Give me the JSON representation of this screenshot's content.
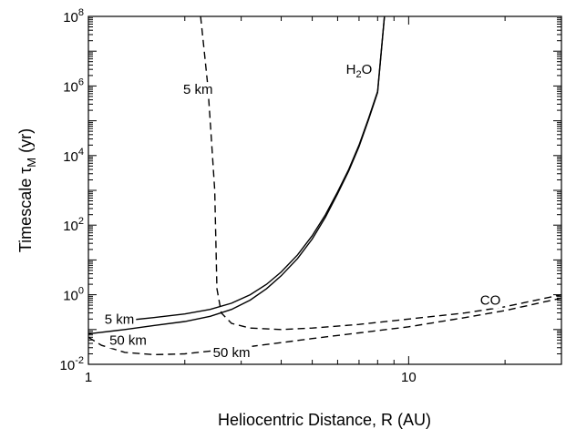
{
  "chart_data": {
    "type": "line",
    "title": "",
    "xlabel": "Heliocentric Distance, R (AU)",
    "ylabel_main": "Timescale τ",
    "ylabel_sub": "M",
    "ylabel_tail": " (yr)",
    "xscale": "log",
    "yscale": "log",
    "xlim": [
      1,
      30
    ],
    "ylim": [
      0.01,
      100000000
    ],
    "x_tick_labels": [
      {
        "value": 1,
        "label": "1"
      },
      {
        "value": 10,
        "label": "10"
      }
    ],
    "y_tick_labels": [
      {
        "value": 0.01,
        "base": "10",
        "exp": "-2"
      },
      {
        "value": 1,
        "base": "10",
        "exp": "0"
      },
      {
        "value": 100,
        "base": "10",
        "exp": "2"
      },
      {
        "value": 10000,
        "base": "10",
        "exp": "4"
      },
      {
        "value": 1000000,
        "base": "10",
        "exp": "6"
      },
      {
        "value": 100000000,
        "base": "10",
        "exp": "8"
      }
    ],
    "series": [
      {
        "id": "h2o-5km",
        "style": "solid",
        "x": [
          1.3,
          1.6,
          2.0,
          2.4,
          2.8,
          3.2,
          3.6,
          4.0,
          4.5,
          5.0,
          5.5,
          6.0,
          6.5,
          7.0,
          7.5,
          8.0,
          8.4
        ],
        "y": [
          0.18,
          0.22,
          0.28,
          0.38,
          0.57,
          1.0,
          2.0,
          4.5,
          14,
          50,
          200,
          900,
          4000,
          20000,
          120000,
          700000,
          100000000
        ]
      },
      {
        "id": "h2o-50km",
        "style": "solid",
        "x": [
          1.0,
          1.3,
          1.6,
          2.0,
          2.4,
          2.8,
          3.2,
          3.6,
          4.0,
          4.5,
          5.0,
          5.5,
          6.0,
          6.5,
          7.0,
          7.5,
          8.0,
          8.4
        ],
        "y": [
          0.075,
          0.1,
          0.13,
          0.17,
          0.24,
          0.38,
          0.7,
          1.5,
          3.5,
          11,
          40,
          170,
          800,
          3600,
          18000,
          110000,
          650000,
          100000000
        ]
      },
      {
        "id": "co-5km",
        "style": "dashed",
        "x": [
          2.24,
          2.3,
          2.36,
          2.4,
          2.44,
          2.48,
          2.52,
          2.6,
          2.8,
          3.2,
          4.0,
          5.0,
          7.0,
          10.0,
          15.0,
          20.0,
          30.0
        ],
        "y": [
          100000000,
          10000000,
          1000000,
          100000,
          10000,
          1000,
          1.5,
          0.3,
          0.15,
          0.11,
          0.1,
          0.11,
          0.14,
          0.2,
          0.3,
          0.45,
          1.0
        ]
      },
      {
        "id": "co-50km",
        "style": "dashed",
        "x": [
          1.0,
          1.1,
          1.3,
          1.6,
          2.0,
          2.5,
          3.0,
          4.0,
          5.0,
          7.0,
          10.0,
          15.0,
          20.0,
          30.0
        ],
        "y": [
          0.06,
          0.035,
          0.022,
          0.019,
          0.02,
          0.025,
          0.03,
          0.042,
          0.055,
          0.08,
          0.12,
          0.22,
          0.35,
          0.8
        ]
      }
    ],
    "annotations": [
      {
        "id": "h2o",
        "text": "H",
        "sub": "2",
        "tail": "O",
        "x": 7.0,
        "y": 3000000
      },
      {
        "id": "co",
        "text": "CO",
        "x": 18.0,
        "y": 0.7
      },
      {
        "id": "left-5km",
        "text": "5 km",
        "x": 1.25,
        "y": 0.2
      },
      {
        "id": "left-50km",
        "text": "50 km",
        "x": 1.33,
        "y": 0.05
      },
      {
        "id": "bottom-50km",
        "text": "50 km",
        "x": 2.8,
        "y": 0.022
      },
      {
        "id": "top-5km",
        "text": "5 km",
        "x": 2.2,
        "y": 800000
      }
    ]
  }
}
